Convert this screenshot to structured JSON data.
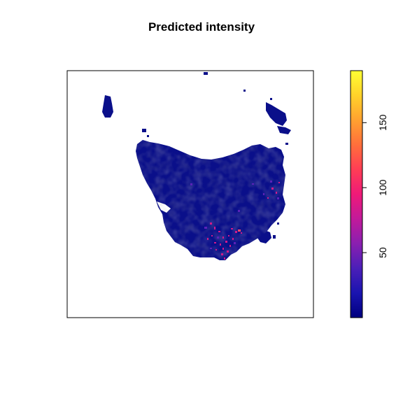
{
  "title": "Predicted intensity",
  "colorbar": {
    "min": 0,
    "max": 190,
    "ticks": [
      {
        "value": 50,
        "label": "50"
      },
      {
        "value": 100,
        "label": "100"
      },
      {
        "value": 150,
        "label": "150"
      }
    ],
    "stops": [
      "#00007f",
      "#1a14b0",
      "#4b1fb8",
      "#8a1fb0",
      "#c21a9a",
      "#ef1a78",
      "#ff3d55",
      "#ff6f3b",
      "#ffa130",
      "#ffd22a",
      "#ffff33"
    ]
  },
  "map": {
    "region": "Tasmania",
    "land_color": "#0a0f8a",
    "hotspot_color": "#d01a8a"
  }
}
